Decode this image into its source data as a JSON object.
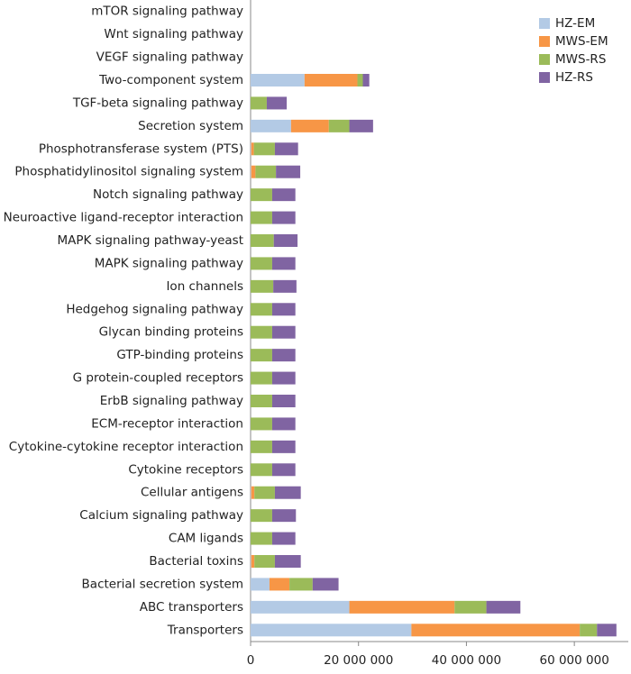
{
  "chart_data": {
    "type": "stacked-barh",
    "categories": [
      "mTOR signaling pathway",
      "Wnt signaling pathway",
      "VEGF signaling pathway",
      "Two-component system",
      "TGF-beta signaling pathway",
      "Secretion system",
      "Phosphotransferase system (PTS)",
      "Phosphatidylinositol signaling system",
      "Notch signaling pathway",
      "Neuroactive ligand-receptor interaction",
      "MAPK signaling pathway-yeast",
      "MAPK signaling pathway",
      "Ion channels",
      "Hedgehog signaling pathway",
      "Glycan binding proteins",
      "GTP-binding proteins",
      "G protein-coupled receptors",
      "ErbB signaling pathway",
      "ECM-receptor interaction",
      "Cytokine-cytokine receptor interaction",
      "Cytokine receptors",
      "Cellular antigens",
      "Calcium signaling pathway",
      "CAM ligands",
      "Bacterial toxins",
      "Bacterial secretion system",
      "ABC transporters",
      "Transporters"
    ],
    "series": [
      {
        "name": "HZ-EM",
        "color": "#b3cae5",
        "values": [
          0,
          0,
          0,
          10000000,
          0,
          7500000,
          100000,
          100000,
          0,
          0,
          0,
          0,
          0,
          0,
          0,
          0,
          0,
          0,
          0,
          0,
          0,
          100000,
          0,
          0,
          100000,
          3500000,
          18300000,
          29800000
        ]
      },
      {
        "name": "MWS-EM",
        "color": "#f79646",
        "values": [
          0,
          0,
          0,
          9800000,
          0,
          7000000,
          500000,
          800000,
          0,
          0,
          0,
          0,
          0,
          0,
          0,
          0,
          0,
          0,
          0,
          0,
          0,
          600000,
          0,
          0,
          600000,
          3700000,
          19500000,
          31200000
        ]
      },
      {
        "name": "MWS-RS",
        "color": "#9bbb59",
        "values": [
          0,
          0,
          0,
          1000000,
          3000000,
          3800000,
          3900000,
          3800000,
          4000000,
          4000000,
          4300000,
          4000000,
          4200000,
          4000000,
          4000000,
          4000000,
          4000000,
          4000000,
          4000000,
          4000000,
          4000000,
          3800000,
          4000000,
          4000000,
          3800000,
          4300000,
          5900000,
          3200000
        ]
      },
      {
        "name": "HZ-RS",
        "color": "#8064a2",
        "values": [
          0,
          0,
          0,
          1200000,
          3700000,
          4400000,
          4300000,
          4500000,
          4300000,
          4300000,
          4400000,
          4300000,
          4300000,
          4300000,
          4300000,
          4300000,
          4300000,
          4300000,
          4300000,
          4300000,
          4300000,
          4800000,
          4400000,
          4300000,
          4800000,
          4800000,
          6300000,
          3600000
        ]
      }
    ],
    "xlim": [
      0,
      70000000
    ],
    "xticks": [
      0,
      {
        "value": 20000000,
        "label": "20 000 000"
      },
      {
        "value": 40000000,
        "label": "40 000 000"
      },
      {
        "value": 60000000,
        "label": "60 000 000"
      }
    ],
    "legend": "top-right"
  }
}
